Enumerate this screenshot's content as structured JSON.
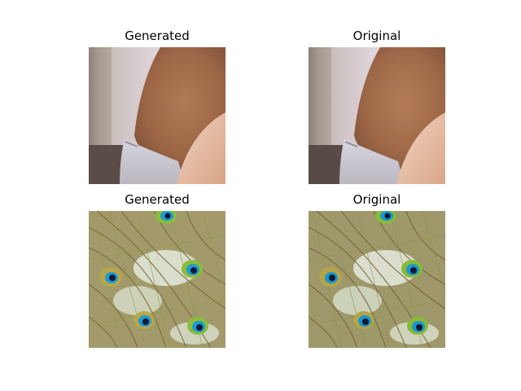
{
  "figure": {
    "panels": [
      {
        "title": "Generated",
        "image": "skin-closeup-photo"
      },
      {
        "title": "Original",
        "image": "skin-closeup-photo"
      },
      {
        "title": "Generated",
        "image": "peacock-feathers-photo"
      },
      {
        "title": "Original",
        "image": "peacock-feathers-photo"
      }
    ]
  }
}
